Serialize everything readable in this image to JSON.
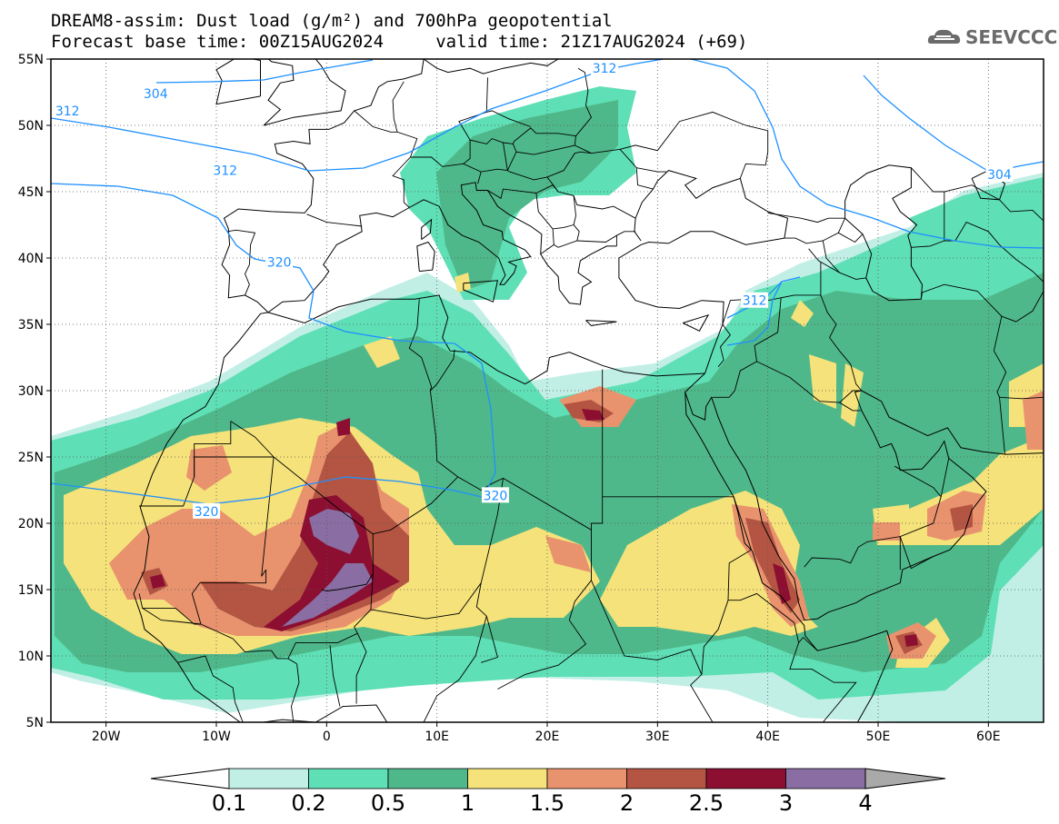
{
  "header": {
    "title_line1": "DREAM8-assim: Dust load (g/m²) and 700hPa geopotential",
    "title_line2": "Forecast base time: 00Z15AUG2024     valid time: 21Z17AUG2024 (+69)",
    "logo_text": "SEEVCCC"
  },
  "map": {
    "lon_range": [
      -25,
      65
    ],
    "lat_range": [
      5,
      55
    ],
    "x_ticks": [
      {
        "lon": -20,
        "label": "20W"
      },
      {
        "lon": -10,
        "label": "10W"
      },
      {
        "lon": 0,
        "label": "0"
      },
      {
        "lon": 10,
        "label": "10E"
      },
      {
        "lon": 20,
        "label": "20E"
      },
      {
        "lon": 30,
        "label": "30E"
      },
      {
        "lon": 40,
        "label": "40E"
      },
      {
        "lon": 50,
        "label": "50E"
      },
      {
        "lon": 60,
        "label": "60E"
      }
    ],
    "y_ticks": [
      {
        "lat": 55,
        "label": "55N"
      },
      {
        "lat": 50,
        "label": "50N"
      },
      {
        "lat": 45,
        "label": "45N"
      },
      {
        "lat": 40,
        "label": "40N"
      },
      {
        "lat": 35,
        "label": "35N"
      },
      {
        "lat": 30,
        "label": "30N"
      },
      {
        "lat": 25,
        "label": "25N"
      },
      {
        "lat": 20,
        "label": "20N"
      },
      {
        "lat": 15,
        "label": "15N"
      },
      {
        "lat": 10,
        "label": "10N"
      },
      {
        "lat": 5,
        "label": "5N"
      }
    ],
    "contour_color": "#1e90ff",
    "contour_labels": [
      {
        "text": "304",
        "lon": -15.5,
        "lat": 52.4
      },
      {
        "text": "312",
        "lon": -23.5,
        "lat": 51.1
      },
      {
        "text": "312",
        "lon": -9.2,
        "lat": 46.6
      },
      {
        "text": "312",
        "lon": 25.2,
        "lat": 54.3
      },
      {
        "text": "320",
        "lon": -4.3,
        "lat": 39.7
      },
      {
        "text": "320",
        "lon": -10.9,
        "lat": 20.9
      },
      {
        "text": "320",
        "lon": 15.3,
        "lat": 22.1
      },
      {
        "text": "312",
        "lon": 38.8,
        "lat": 36.8
      },
      {
        "text": "304",
        "lon": 61.0,
        "lat": 46.3
      }
    ]
  },
  "colorbar": {
    "levels": [
      "0.1",
      "0.2",
      "0.5",
      "1",
      "1.5",
      "2",
      "2.5",
      "3",
      "4"
    ],
    "colors": [
      "#c1efe6",
      "#5fdfb5",
      "#4fb88a",
      "#f5e27a",
      "#e8936e",
      "#b45543",
      "#8c0f31",
      "#8a6da3",
      "#a9a9a9"
    ],
    "under_color": "#ffffff"
  },
  "dust_colors": {
    "c01": "#c1efe6",
    "c02": "#5fdfb5",
    "c05": "#4fb88a",
    "c1": "#f5e27a",
    "c15": "#e8936e",
    "c2": "#b45543",
    "c25": "#8c0f31",
    "c3": "#8a6da3"
  }
}
